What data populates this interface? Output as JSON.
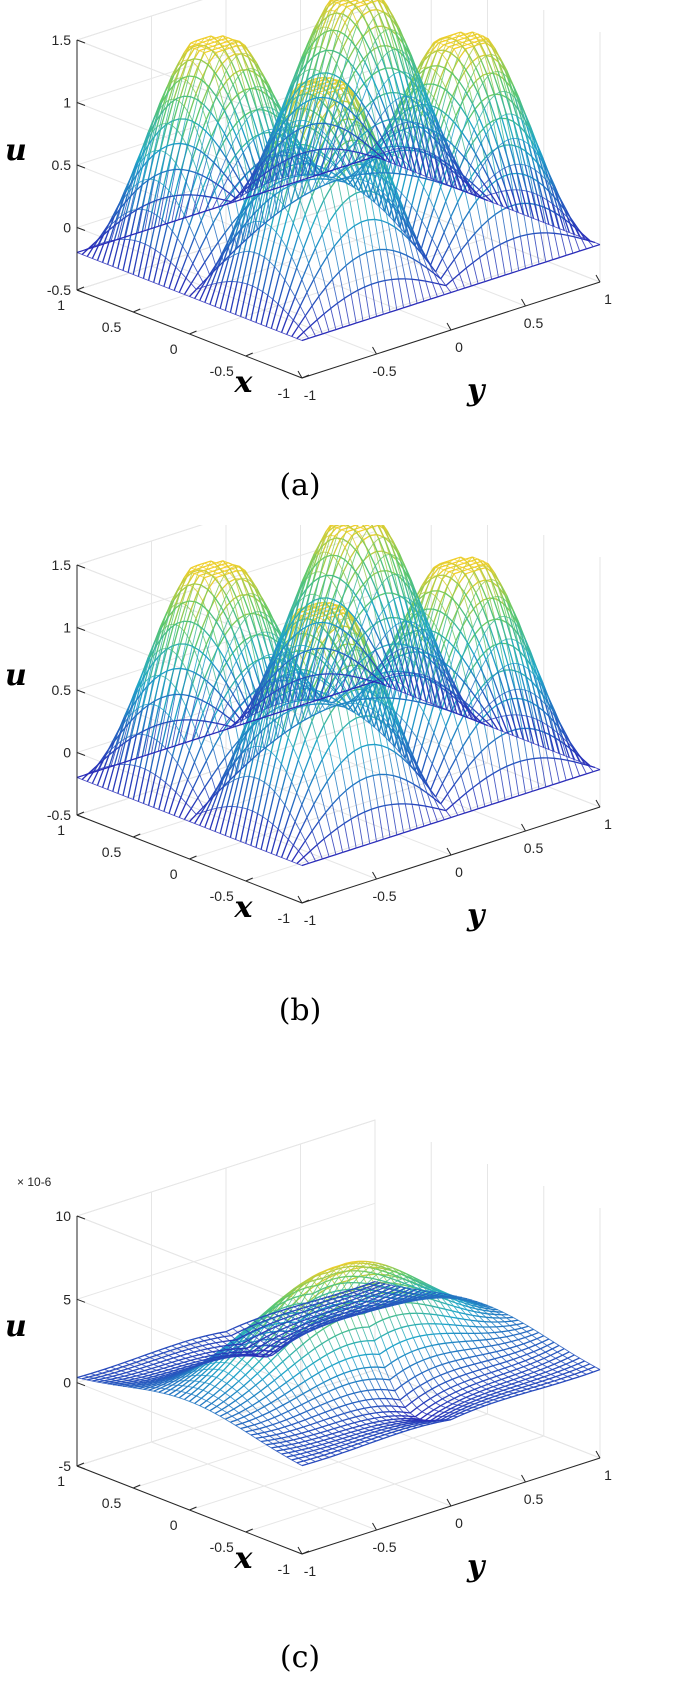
{
  "colors": {
    "low": "#2a2bb8",
    "mid": "#1fa6c9",
    "midhigh": "#5ec96a",
    "high": "#f2cf2a",
    "axis": "#262626",
    "grid": "#e6e6e6"
  },
  "chart_data": [
    {
      "type": "surface",
      "caption": "(a)",
      "zlabel": "u",
      "xlabel": "x",
      "ylabel": "y",
      "zlim": [
        -0.5,
        1.5
      ],
      "xlim": [
        -1,
        1
      ],
      "ylim": [
        -1,
        1
      ],
      "zticks": [
        "-0.5",
        "0",
        "0.5",
        "1",
        "1.5"
      ],
      "xticks": [
        "1",
        "0.5",
        "0",
        "-0.5",
        "-1"
      ],
      "yticks": [
        "-1",
        "-0.5",
        "0",
        "0.5",
        "1"
      ],
      "exponent": "",
      "grid": true,
      "surface": {
        "function": "sin-product",
        "amplitude": 1.4,
        "min": -0.5,
        "max": 1.45,
        "peaks_per_axis": 2
      }
    },
    {
      "type": "surface",
      "caption": "(b)",
      "zlabel": "u",
      "xlabel": "x",
      "ylabel": "y",
      "zlim": [
        -0.5,
        1.5
      ],
      "xlim": [
        -1,
        1
      ],
      "ylim": [
        -1,
        1
      ],
      "zticks": [
        "-0.5",
        "0",
        "0.5",
        "1",
        "1.5"
      ],
      "xticks": [
        "1",
        "0.5",
        "0",
        "-0.5",
        "-1"
      ],
      "yticks": [
        "-1",
        "-0.5",
        "0",
        "0.5",
        "1"
      ],
      "exponent": "",
      "grid": true,
      "surface": {
        "function": "sin-product",
        "amplitude": 1.4,
        "min": -0.5,
        "max": 1.45,
        "peaks_per_axis": 2
      }
    },
    {
      "type": "surface",
      "caption": "(c)",
      "zlabel": "u",
      "xlabel": "x",
      "ylabel": "y",
      "zlim": [
        -5,
        10
      ],
      "xlim": [
        -1,
        1
      ],
      "ylim": [
        -1,
        1
      ],
      "zticks": [
        "-5",
        "0",
        "5",
        "10"
      ],
      "xticks": [
        "1",
        "0.5",
        "0",
        "-0.5",
        "-1"
      ],
      "yticks": [
        "-1",
        "-0.5",
        "0",
        "0.5",
        "1"
      ],
      "exponent": "× 10-6",
      "grid": true,
      "surface": {
        "function": "error-dome",
        "min": -5,
        "max": 7.5
      }
    }
  ]
}
